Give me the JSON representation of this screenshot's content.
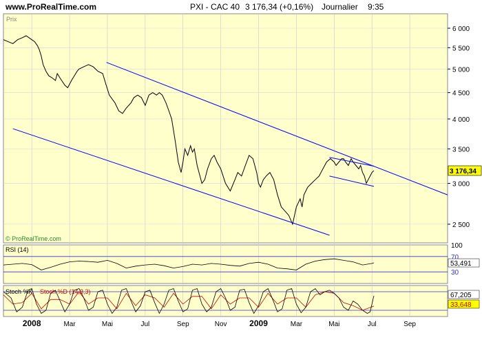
{
  "header": {
    "site": "www.ProRealTime.com",
    "instrument": "PXI - CAC 40",
    "quote": "3 176,34 (+0,16%)",
    "period": "Journalier",
    "time": "9:35"
  },
  "colors": {
    "background": "#ffffcc",
    "price_line": "#000000",
    "channel_line": "#0000ff",
    "rsi_line": "#000000",
    "stoch_k": "#000000",
    "stoch_d": "#cc0000",
    "price_tag_bg": "#ffff00"
  },
  "chart_data": [
    {
      "type": "line",
      "panel": "price",
      "label": "Prix",
      "watermark": "© ProRealTime.com",
      "ylog": true,
      "ylim": [
        2300,
        6400
      ],
      "y_ticks": [
        2500,
        3000,
        3500,
        4000,
        4500,
        5000,
        5500,
        6000
      ],
      "y_tick_labels": [
        "2 500",
        "3 000",
        "3 500",
        "4 000",
        "4 500",
        "5 000",
        "5 500",
        "6 000"
      ],
      "x_ticks": [
        "2008",
        "Mar",
        "Mai",
        "Jul",
        "Sep",
        "Nov",
        "2009",
        "Mar",
        "Mai",
        "Jul",
        "Sep"
      ],
      "x_tick_index": [
        0,
        40,
        80,
        120,
        160,
        200,
        240,
        280,
        320,
        360,
        400
      ],
      "xlim": [
        -30,
        440
      ],
      "last_value": "3 176,34",
      "series": [
        {
          "x": [
            -30,
            -25,
            -20,
            -15,
            -10,
            -6,
            -3,
            0,
            3,
            6,
            8,
            10,
            12,
            15,
            18,
            22,
            25,
            27,
            30,
            35,
            38,
            42,
            45,
            48,
            50,
            55,
            60,
            65,
            70,
            75,
            78,
            82,
            88,
            92,
            96,
            100,
            105,
            108,
            112,
            116,
            120,
            124,
            128,
            132,
            135,
            138,
            142,
            145,
            148,
            150,
            152,
            155,
            158,
            160,
            162,
            165,
            168,
            170,
            172,
            175,
            178,
            180,
            183,
            186,
            190,
            193,
            196,
            200,
            205,
            210,
            215,
            218,
            222,
            226,
            230,
            234,
            238,
            240,
            242,
            245,
            248,
            252,
            256,
            260,
            264,
            268,
            272,
            276,
            280,
            284,
            286,
            288,
            292,
            296,
            300,
            304,
            308,
            312,
            316,
            320,
            322,
            325,
            328,
            330,
            332,
            335,
            338,
            340,
            343,
            346,
            348,
            350,
            352,
            354,
            356,
            358,
            360,
            362
          ],
          "y": [
            5700,
            5650,
            5600,
            5700,
            5750,
            5800,
            5750,
            5700,
            5650,
            5550,
            5450,
            5300,
            5100,
            4950,
            4850,
            4800,
            4750,
            4900,
            4800,
            4650,
            4600,
            4750,
            4850,
            4950,
            5000,
            5050,
            5100,
            5050,
            4950,
            4900,
            4700,
            4450,
            4300,
            4150,
            4100,
            4200,
            4300,
            4400,
            4450,
            4400,
            4250,
            4450,
            4500,
            4450,
            4500,
            4450,
            4300,
            4150,
            4000,
            3800,
            3600,
            3300,
            3150,
            3300,
            3500,
            3400,
            3550,
            3450,
            3500,
            3250,
            3100,
            3000,
            3050,
            3200,
            3350,
            3400,
            3300,
            3200,
            3000,
            2900,
            3050,
            3150,
            3100,
            3250,
            3400,
            3350,
            3150,
            3000,
            2950,
            3050,
            3100,
            3150,
            3050,
            2850,
            2700,
            2650,
            2600,
            2500,
            2700,
            2800,
            2700,
            2850,
            2950,
            3000,
            3050,
            3100,
            3200,
            3300,
            3350,
            3300,
            3250,
            3300,
            3350,
            3350,
            3300,
            3250,
            3350,
            3300,
            3250,
            3200,
            3250,
            3150,
            3100,
            3000,
            3050,
            3100,
            3150,
            3176
          ]
        }
      ],
      "channel_lines": [
        {
          "x": [
            79,
            440
          ],
          "y": [
            5150,
            2850
          ]
        },
        {
          "x": [
            -20,
            315
          ],
          "y": [
            3830,
            2380
          ]
        },
        {
          "x": [
            315,
            362
          ],
          "y": [
            3370,
            3240
          ]
        },
        {
          "x": [
            315,
            362
          ],
          "y": [
            3100,
            2960
          ]
        }
      ]
    },
    {
      "type": "line",
      "panel": "rsi",
      "label": "RSI (14)",
      "ylim": [
        0,
        100
      ],
      "levels": [
        30,
        70
      ],
      "y_tick_labels": [
        "100",
        "70",
        "30"
      ],
      "last_value": "53,491",
      "series": [
        {
          "x": [
            -30,
            -20,
            -10,
            0,
            10,
            20,
            30,
            40,
            50,
            60,
            70,
            80,
            90,
            100,
            110,
            120,
            130,
            140,
            150,
            160,
            170,
            180,
            190,
            200,
            210,
            220,
            230,
            240,
            250,
            260,
            270,
            280,
            290,
            300,
            310,
            320,
            330,
            340,
            350,
            360,
            362
          ],
          "y": [
            48,
            50,
            52,
            49,
            35,
            42,
            50,
            56,
            58,
            57,
            55,
            60,
            52,
            40,
            45,
            48,
            50,
            46,
            40,
            44,
            50,
            48,
            52,
            50,
            47,
            45,
            52,
            55,
            50,
            40,
            38,
            35,
            50,
            58,
            62,
            64,
            60,
            56,
            48,
            52,
            53.5
          ]
        }
      ]
    },
    {
      "type": "line",
      "panel": "stochastic",
      "label": "Stoch %K",
      "label_d": "Stoch %D (14,3,3)",
      "ylim": [
        0,
        100
      ],
      "levels": [
        20,
        80
      ],
      "last_k": "67,205",
      "last_d": "33,648",
      "series": [
        {
          "name": "Stoch %K",
          "x": [
            -30,
            -22,
            -16,
            -10,
            -4,
            0,
            5,
            10,
            15,
            20,
            25,
            30,
            35,
            40,
            45,
            50,
            55,
            60,
            65,
            70,
            75,
            80,
            85,
            90,
            95,
            100,
            105,
            110,
            115,
            120,
            125,
            130,
            135,
            140,
            145,
            150,
            155,
            160,
            165,
            170,
            175,
            180,
            185,
            190,
            195,
            200,
            205,
            210,
            215,
            220,
            225,
            230,
            235,
            240,
            245,
            250,
            255,
            260,
            265,
            270,
            275,
            280,
            285,
            290,
            295,
            300,
            305,
            310,
            315,
            320,
            325,
            330,
            335,
            340,
            345,
            350,
            355,
            358,
            362
          ],
          "y": [
            80,
            60,
            15,
            30,
            85,
            90,
            40,
            10,
            20,
            75,
            85,
            50,
            15,
            40,
            85,
            90,
            60,
            20,
            30,
            80,
            85,
            40,
            10,
            30,
            85,
            90,
            50,
            15,
            35,
            80,
            85,
            45,
            10,
            40,
            85,
            90,
            50,
            15,
            25,
            85,
            90,
            40,
            15,
            30,
            80,
            90,
            60,
            20,
            30,
            85,
            88,
            45,
            10,
            35,
            80,
            90,
            55,
            15,
            25,
            85,
            90,
            40,
            12,
            30,
            80,
            90,
            70,
            80,
            85,
            75,
            60,
            30,
            20,
            50,
            40,
            20,
            10,
            15,
            67
          ]
        },
        {
          "name": "Stoch %D (14,3,3)",
          "x": [
            -30,
            -20,
            -10,
            0,
            10,
            20,
            30,
            40,
            50,
            60,
            70,
            80,
            90,
            100,
            110,
            120,
            130,
            140,
            150,
            160,
            170,
            180,
            190,
            200,
            210,
            220,
            230,
            240,
            250,
            260,
            270,
            280,
            290,
            300,
            310,
            320,
            330,
            340,
            350,
            362
          ],
          "y": [
            70,
            40,
            45,
            75,
            25,
            55,
            55,
            40,
            80,
            40,
            60,
            60,
            25,
            75,
            35,
            70,
            60,
            30,
            75,
            40,
            65,
            65,
            25,
            70,
            40,
            60,
            60,
            30,
            75,
            40,
            60,
            60,
            30,
            70,
            80,
            75,
            45,
            35,
            20,
            33.6
          ]
        }
      ]
    }
  ]
}
